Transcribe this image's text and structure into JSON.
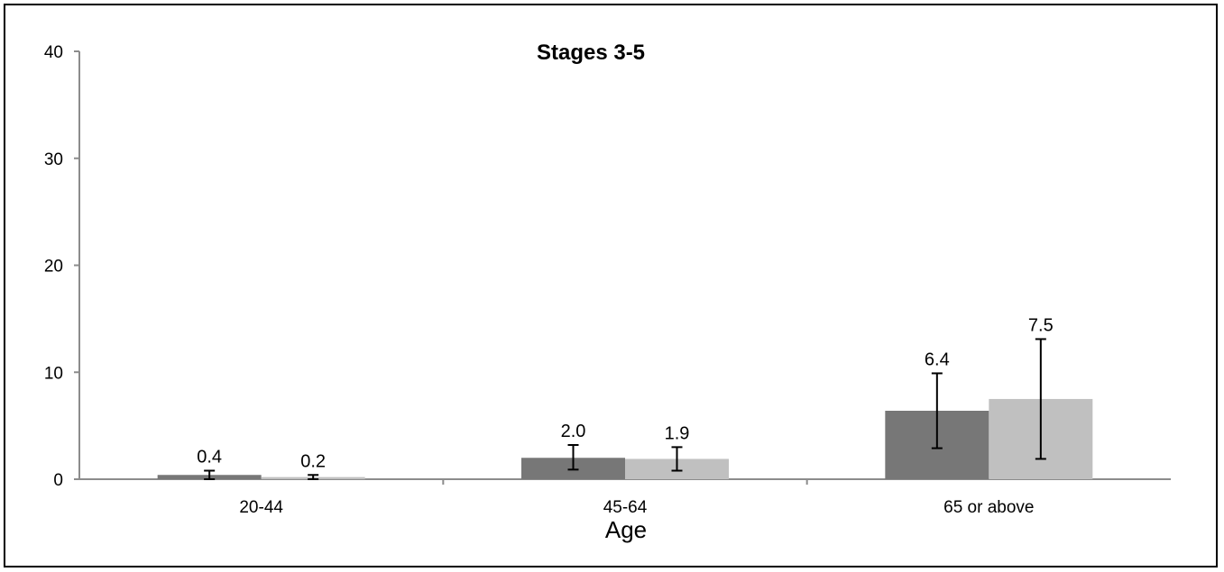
{
  "chart_data": {
    "type": "bar",
    "title": "Stages 3-5",
    "xlabel": "Age",
    "ylabel": "",
    "categories": [
      "20-44",
      "45-64",
      "65 or above"
    ],
    "ylim": [
      0,
      40
    ],
    "yticks": [
      0,
      10,
      20,
      30,
      40
    ],
    "grid": false,
    "series": [
      {
        "color": "#777777",
        "values": [
          0.4,
          2.0,
          6.4
        ],
        "labels": [
          "0.4",
          "2.0",
          "6.4"
        ],
        "err_low": [
          0.0,
          0.9,
          2.9
        ],
        "err_high": [
          0.8,
          3.2,
          9.9
        ]
      },
      {
        "color": "#c0c0c0",
        "values": [
          0.2,
          1.9,
          7.5
        ],
        "labels": [
          "0.2",
          "1.9",
          "7.5"
        ],
        "err_low": [
          0.0,
          0.8,
          1.9
        ],
        "err_high": [
          0.4,
          3.0,
          13.1
        ]
      }
    ]
  }
}
